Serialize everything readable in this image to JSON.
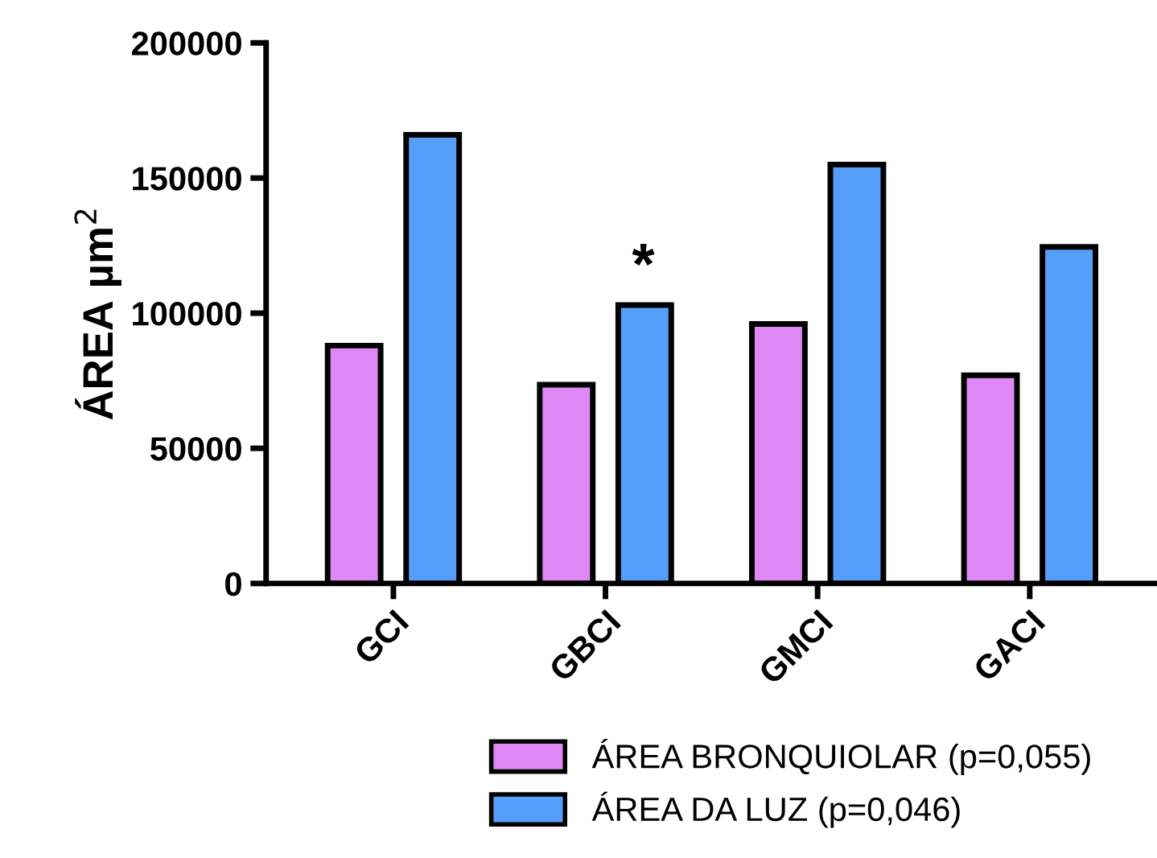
{
  "chart_data": {
    "type": "bar",
    "ylabel": "ÁREA µm$^{2}$",
    "categories": [
      "GCI",
      "GBCI",
      "GMCI",
      "GACI"
    ],
    "series": [
      {
        "name": "ÁREA BRONQUIOLAR (p=0,055)",
        "color": "#dd88f4",
        "values": [
          88000,
          73500,
          96000,
          77000
        ]
      },
      {
        "name": "ÁREA DA LUZ (p=0,046)",
        "color": "#559ffa",
        "values": [
          166000,
          103000,
          155000,
          124500
        ]
      }
    ],
    "ylim": [
      0,
      200000
    ],
    "yticks": [
      0,
      50000,
      100000,
      150000,
      200000
    ],
    "grid": false,
    "legend": "bottom",
    "annotations": [
      "*"
    ]
  }
}
